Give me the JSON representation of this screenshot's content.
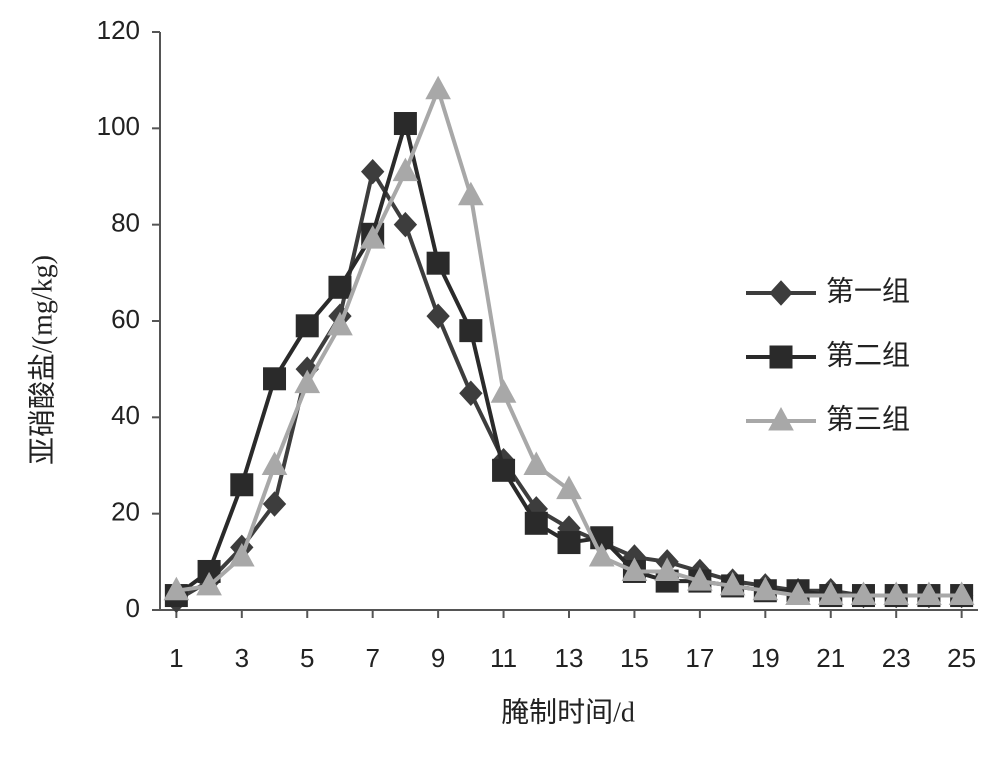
{
  "chart_data": {
    "type": "line",
    "ylabel": "亚硝酸盐/(mg/kg)",
    "xlabel": "腌制时间/d",
    "x": [
      1,
      2,
      3,
      4,
      5,
      6,
      7,
      8,
      9,
      10,
      11,
      12,
      13,
      14,
      15,
      16,
      17,
      18,
      19,
      20,
      21,
      22,
      23,
      24,
      25
    ],
    "xlim": [
      0.5,
      25.5
    ],
    "xticks": [
      1,
      3,
      5,
      7,
      9,
      11,
      13,
      15,
      17,
      19,
      21,
      23,
      25
    ],
    "ylim": [
      0,
      120
    ],
    "yticks": [
      0,
      20,
      40,
      60,
      80,
      100,
      120
    ],
    "legend": "right",
    "series": [
      {
        "name": "第一组",
        "color": "#3d3d3d",
        "marker": "diamond",
        "values": [
          2,
          6,
          13,
          22,
          50,
          61,
          91,
          80,
          61,
          45,
          31,
          21,
          17,
          14,
          11,
          10,
          8,
          6,
          5,
          4,
          4,
          3,
          3,
          3,
          3
        ]
      },
      {
        "name": "第二组",
        "color": "#2a2a2a",
        "marker": "square",
        "values": [
          3,
          8,
          26,
          48,
          59,
          67,
          78,
          101,
          72,
          58,
          29,
          18,
          14,
          15,
          8,
          6,
          6,
          5,
          4,
          4,
          3,
          3,
          3,
          3,
          3
        ]
      },
      {
        "name": "第三组",
        "color": "#a8a8a8",
        "marker": "triangle",
        "values": [
          4,
          5,
          11,
          30,
          47,
          59,
          77,
          91,
          108,
          86,
          45,
          30,
          25,
          11,
          8,
          8,
          6,
          5,
          4,
          3,
          3,
          3,
          3,
          3,
          3
        ]
      }
    ]
  }
}
